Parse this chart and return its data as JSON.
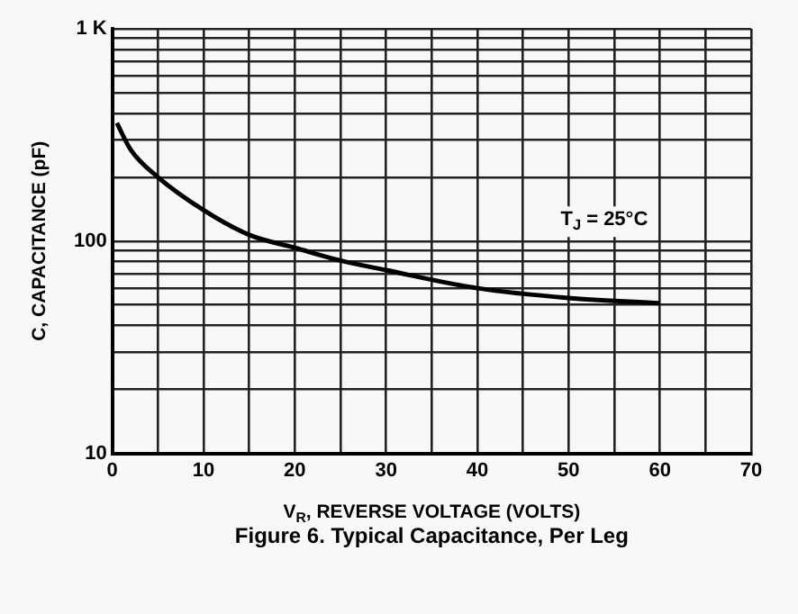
{
  "chart_data": {
    "type": "line",
    "title": "Figure 6. Typical Capacitance, Per Leg",
    "xlabel": "V$_{R}$, REVERSE VOLTAGE (VOLTS)",
    "ylabel": "C, CAPACITANCE (pF)",
    "annotations": [
      "T$_{J}$ = 25°C"
    ],
    "x": [
      0.5,
      2,
      5,
      10,
      15,
      20,
      25,
      30,
      40,
      50,
      60
    ],
    "series": [
      {
        "color": "#000000",
        "values": [
          360,
          270,
          200,
          140,
          107,
          93,
          81,
          73,
          60,
          54,
          51
        ]
      }
    ],
    "log": "y",
    "xlim": [
      0,
      70
    ],
    "ylim": [
      10,
      1000
    ],
    "xticks": [
      0,
      {
        "value": 5,
        "label": null
      },
      10,
      {
        "value": 15,
        "label": null
      },
      20,
      {
        "value": 25,
        "label": null
      },
      30,
      {
        "value": 35,
        "label": null
      },
      40,
      {
        "value": 45,
        "label": null
      },
      50,
      {
        "value": 55,
        "label": null
      },
      60,
      {
        "value": 65,
        "label": null
      },
      70
    ],
    "yticks": [
      10,
      {
        "value": 20,
        "label": null
      },
      {
        "value": 30,
        "label": null
      },
      {
        "value": 40,
        "label": null
      },
      {
        "value": 50,
        "label": null
      },
      {
        "value": 60,
        "label": null
      },
      {
        "value": 70,
        "label": null
      },
      {
        "value": 80,
        "label": null
      },
      {
        "value": 90,
        "label": null
      },
      100,
      {
        "value": 200,
        "label": null
      },
      {
        "value": 300,
        "label": null
      },
      {
        "value": 400,
        "label": null
      },
      {
        "value": 500,
        "label": null
      },
      {
        "value": 600,
        "label": null
      },
      {
        "value": 700,
        "label": null
      },
      {
        "value": 800,
        "label": null
      },
      {
        "value": 900,
        "label": null
      },
      {
        "value": 1000,
        "label": "1 K"
      }
    ],
    "grid": true,
    "legend": false,
    "marker": "none",
    "line_style": "solid"
  }
}
